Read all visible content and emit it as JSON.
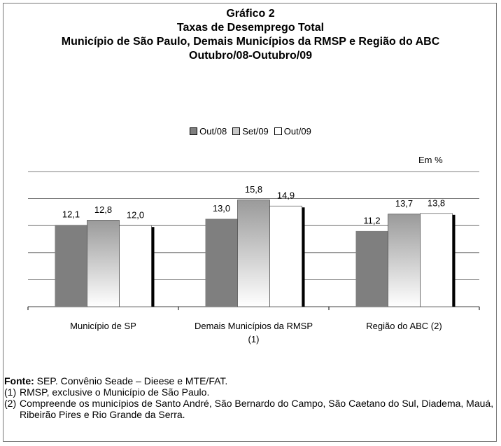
{
  "chart_data": {
    "type": "bar",
    "title": [
      "Gráfico 2",
      "Taxas de Desemprego Total",
      "Município de São Paulo, Demais Municípios da RMSP e Região do ABC",
      "Outubro/08-Outubro/09"
    ],
    "unit_label": "Em %",
    "categories": [
      "Município de SP",
      "Demais Municípios da RMSP (1)",
      "Região do ABC (2)"
    ],
    "series": [
      {
        "name": "Out/08",
        "color": "#7f7f7f",
        "values": [
          12.1,
          13.0,
          11.2
        ],
        "value_labels": [
          "12,1",
          "13,0",
          "11,2"
        ]
      },
      {
        "name": "Set/09",
        "color": "#c8c8c8",
        "values": [
          12.8,
          15.8,
          13.7
        ],
        "value_labels": [
          "12,8",
          "15,8",
          "13,7"
        ]
      },
      {
        "name": "Out/09",
        "color": "#ffffff",
        "values": [
          12.0,
          14.9,
          13.8
        ],
        "value_labels": [
          "12,0",
          "14,9",
          "13,8"
        ]
      }
    ],
    "ylim": [
      0,
      20
    ],
    "yticks": [
      0,
      4,
      8,
      12,
      16,
      20
    ],
    "grid": true
  },
  "footer": {
    "source_label": "Fonte:",
    "source_text": "SEP. Convênio Seade – Dieese e MTE/FAT.",
    "notes": [
      {
        "marker": "(1)",
        "text": "RMSP, exclusive o Município de São Paulo."
      },
      {
        "marker": "(2)",
        "text": "Compreende os municípios de Santo André, São Bernardo do Campo, São Caetano do Sul, Diadema, Mauá, Ribeirão Pires e Rio Grande da Serra."
      }
    ]
  }
}
